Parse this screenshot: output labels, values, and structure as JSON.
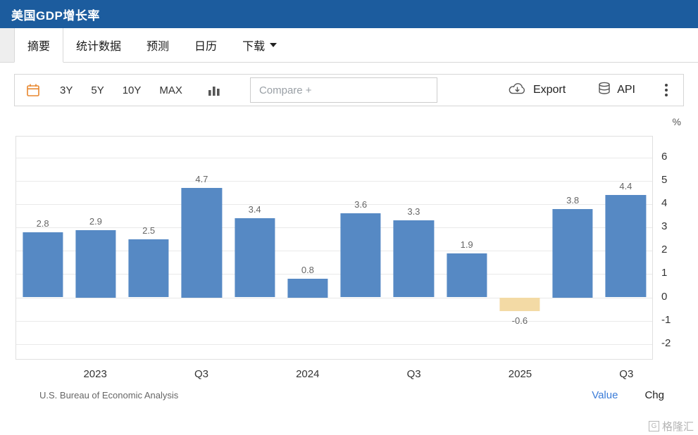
{
  "header": {
    "title": "美国GDP增长率",
    "bg_color": "#1c5c9e"
  },
  "tabs": {
    "items": [
      {
        "label": "摘要",
        "active": true
      },
      {
        "label": "统计数据",
        "active": false
      },
      {
        "label": "预测",
        "active": false
      },
      {
        "label": "日历",
        "active": false
      },
      {
        "label": "下载",
        "active": false,
        "has_dropdown": true
      }
    ]
  },
  "toolbar": {
    "ranges": [
      "3Y",
      "5Y",
      "10Y",
      "MAX"
    ],
    "compare_placeholder": "Compare +",
    "export_label": "Export",
    "api_label": "API",
    "icons": [
      "calendar-icon",
      "column-chart-icon",
      "cloud-download-icon",
      "database-icon",
      "kebab-menu-icon"
    ]
  },
  "chart_data": {
    "type": "bar",
    "title": "美国GDP增长率",
    "unit": "%",
    "x_labels": [
      "2023",
      "Q3",
      "2024",
      "Q3",
      "2025",
      "Q3"
    ],
    "x_label_bar_indices": [
      1,
      3,
      5,
      7,
      9,
      11
    ],
    "values": [
      2.8,
      2.9,
      2.5,
      4.7,
      3.4,
      0.8,
      3.6,
      3.3,
      1.9,
      -0.6,
      3.8,
      4.4
    ],
    "highlight_index": 9,
    "yticks": [
      6,
      5,
      4,
      3,
      2,
      1,
      0,
      -1,
      -2
    ],
    "ylim": [
      -2,
      6
    ],
    "y_render_range": [
      -2.7,
      6.9
    ],
    "bar_color": "#5689c4",
    "highlight_color": "#f3daa5",
    "grid": true,
    "legend": "none"
  },
  "footer": {
    "source": "U.S. Bureau of Economic Analysis",
    "value_label": "Value",
    "chg_label": "Chg"
  },
  "watermark": {
    "text": "格隆汇",
    "icon_letter": "G"
  }
}
